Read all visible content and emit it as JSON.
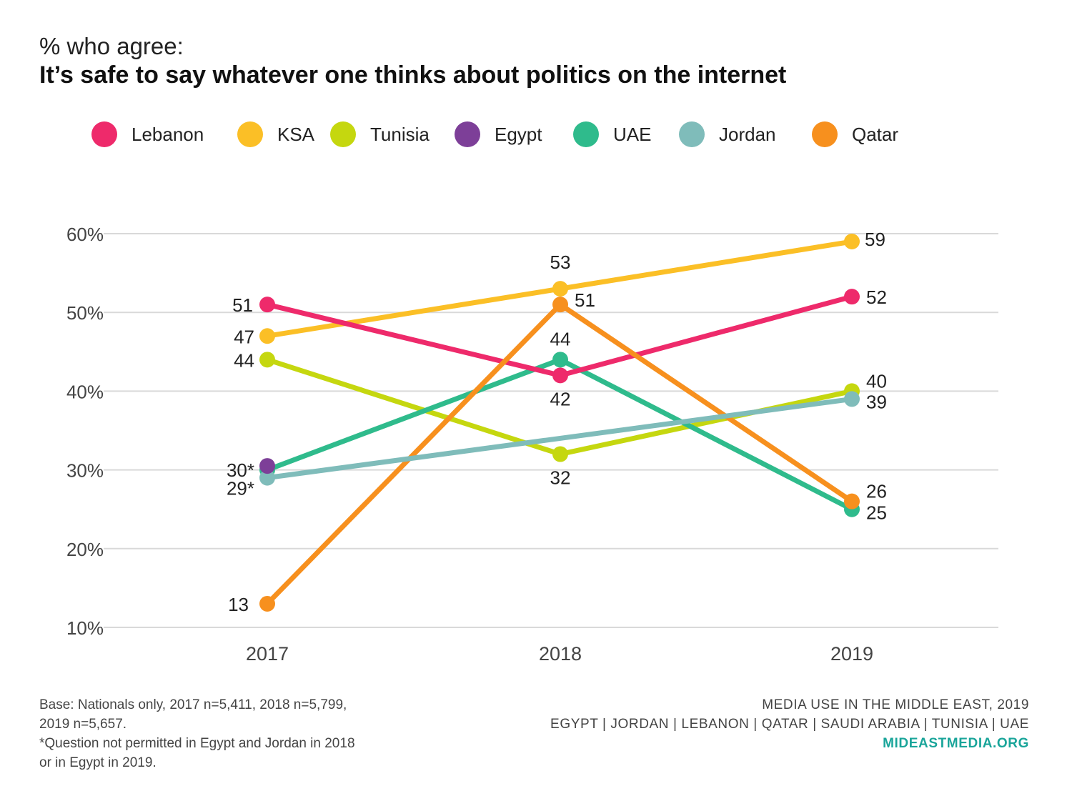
{
  "subtitle": "% who agree:",
  "title": "It’s safe to say whatever one thinks about politics on the internet",
  "chart_data": {
    "type": "line",
    "x": [
      "2017",
      "2018",
      "2019"
    ],
    "ylim": [
      10,
      60
    ],
    "yticks": [
      10,
      20,
      30,
      40,
      50,
      60
    ],
    "ytick_labels": [
      "10%",
      "20%",
      "30%",
      "40%",
      "50%",
      "60%"
    ],
    "grid": true,
    "legend_position": "top",
    "series": [
      {
        "name": "Lebanon",
        "color": "#ee2a6b",
        "values": [
          51,
          42,
          52
        ],
        "labels": [
          "51",
          "42",
          "52"
        ]
      },
      {
        "name": "KSA",
        "color": "#fbbf26",
        "values": [
          47,
          53,
          59
        ],
        "labels": [
          "47",
          "53",
          "59"
        ]
      },
      {
        "name": "Tunisia",
        "color": "#c5d70f",
        "values": [
          44,
          32,
          40
        ],
        "labels": [
          "44",
          "32",
          "40"
        ]
      },
      {
        "name": "Egypt",
        "color": "#7d3f98",
        "values": [
          30.5,
          null,
          null
        ],
        "labels": [
          "30*",
          null,
          null
        ]
      },
      {
        "name": "UAE",
        "color": "#2fbb8c",
        "values": [
          30,
          44,
          25
        ],
        "labels": [
          null,
          "44",
          "25"
        ]
      },
      {
        "name": "Jordan",
        "color": "#7fbcba",
        "values": [
          29,
          null,
          39
        ],
        "labels": [
          "29*",
          null,
          "39"
        ]
      },
      {
        "name": "Qatar",
        "color": "#f7901e",
        "values": [
          13,
          51,
          26
        ],
        "labels": [
          "13",
          "51",
          "26"
        ]
      }
    ]
  },
  "footnote": {
    "line1": "Base: Nationals only, 2017 n=5,411, 2018 n=5,799,",
    "line2": "2019 n=5,657.",
    "line3": "*Question not permitted in Egypt and Jordan in 2018",
    "line4": "or in Egypt in 2019."
  },
  "credits": {
    "line1": "MEDIA USE IN THE MIDDLE EAST, 2019",
    "line2": "EGYPT | JORDAN | LEBANON | QATAR | SAUDI ARABIA | TUNISIA | UAE",
    "site": "MIDEASTMEDIA.ORG"
  }
}
